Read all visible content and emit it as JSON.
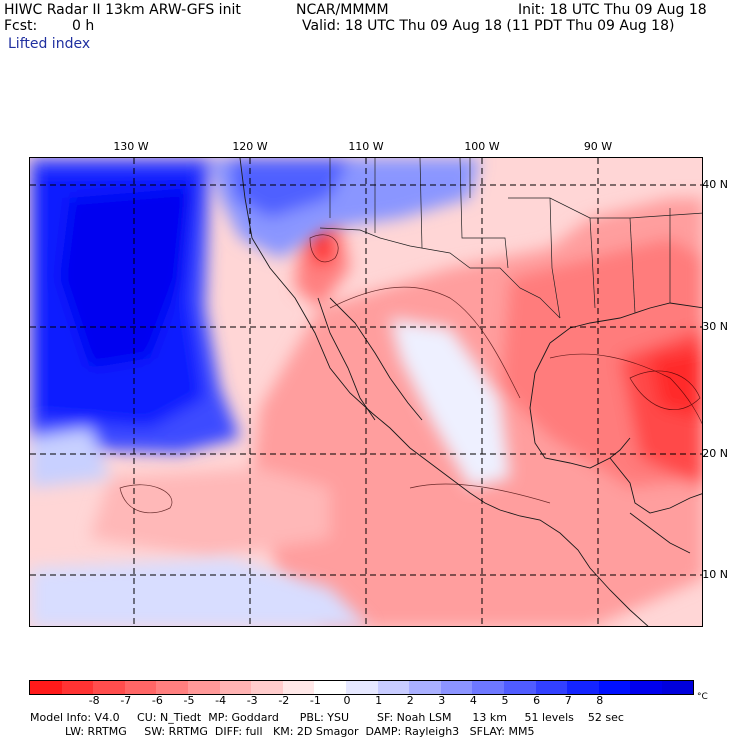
{
  "header": {
    "title_left": "HIWC Radar II 13km ARW-GFS init",
    "org": "NCAR/MMMM",
    "init": "Init: 18 UTC Thu 09 Aug 18",
    "fcst_label": "Fcst:",
    "fcst_value": "0 h",
    "valid": "Valid: 18 UTC Thu 09 Aug 18 (11 PDT Thu 09 Aug 18)",
    "field": "Lifted index"
  },
  "lon_labels": [
    "130 W",
    "120 W",
    "110 W",
    "100 W",
    "90 W"
  ],
  "lat_labels": [
    "40 N",
    "30 N",
    "20 N",
    "10 N"
  ],
  "colorbar": {
    "ticks": [
      "-8",
      "-7",
      "-6",
      "-5",
      "-4",
      "-3",
      "-2",
      "-1",
      "0",
      "1",
      "2",
      "3",
      "4",
      "5",
      "6",
      "7",
      "8"
    ],
    "unit": "°C",
    "colors": [
      "#ff1a1a",
      "#ff3333",
      "#ff4d4d",
      "#ff6666",
      "#ff7f7f",
      "#ff9999",
      "#ffb3b3",
      "#ffcccc",
      "#ffe8e8",
      "#ffffff",
      "#e6e8ff",
      "#c8ccff",
      "#aab0ff",
      "#8c94ff",
      "#6e78ff",
      "#505cff",
      "#3240ff",
      "#1424ff",
      "#0010ff",
      "#0000ee",
      "#0000dd"
    ]
  },
  "footer": {
    "line1": "Model Info: V4.0     CU: N_Tiedt  MP: Goddard      PBL: YSU        SF: Noah LSM      13 km     51 levels    52 sec",
    "line2": "          LW: RRTMG     SW: RRTMG  DIFF: full   KM: 2D Smagor  DAMP: Rayleigh3   SFLAY: MM5"
  }
}
